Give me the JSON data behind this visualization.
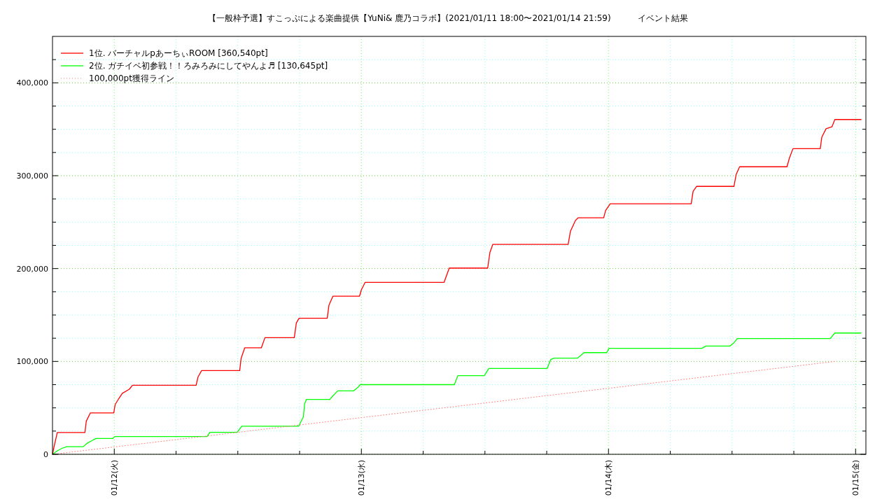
{
  "chart_data": {
    "type": "line",
    "title": "【一般枠予選】すこっぷによる楽曲提供【YuNi& 鹿乃コラボ】(2021/01/11 18:00〜2021/01/14 21:59)          イベント結果",
    "xlim": [
      "2021-01-11T18:00",
      "2021-01-15T01:00"
    ],
    "xticks": [
      {
        "value": "2021-01-12T00:00",
        "label": "01/12(火)"
      },
      {
        "value": "2021-01-12T06:00",
        "label": null
      },
      {
        "value": "2021-01-12T12:00",
        "label": null
      },
      {
        "value": "2021-01-12T18:00",
        "label": null
      },
      {
        "value": "2021-01-13T00:00",
        "label": "01/13(水)"
      },
      {
        "value": "2021-01-13T06:00",
        "label": null
      },
      {
        "value": "2021-01-13T12:00",
        "label": null
      },
      {
        "value": "2021-01-13T18:00",
        "label": null
      },
      {
        "value": "2021-01-14T00:00",
        "label": "01/14(木)"
      },
      {
        "value": "2021-01-14T06:00",
        "label": null
      },
      {
        "value": "2021-01-14T12:00",
        "label": null
      },
      {
        "value": "2021-01-14T18:00",
        "label": null
      },
      {
        "value": "2021-01-15T00:00",
        "label": "01/15(金)"
      }
    ],
    "ylim": [
      0,
      450000
    ],
    "yticks": [
      0,
      {
        "value": 25000,
        "label": null
      },
      {
        "value": 50000,
        "label": null
      },
      {
        "value": 75000,
        "label": null
      },
      {
        "value": 100000,
        "label": "100,000"
      },
      {
        "value": 125000,
        "label": null
      },
      {
        "value": 150000,
        "label": null
      },
      {
        "value": 175000,
        "label": null
      },
      {
        "value": 200000,
        "label": "200,000"
      },
      {
        "value": 225000,
        "label": null
      },
      {
        "value": 250000,
        "label": null
      },
      {
        "value": 275000,
        "label": null
      },
      {
        "value": 300000,
        "label": "300,000"
      },
      {
        "value": 325000,
        "label": null
      },
      {
        "value": 350000,
        "label": null
      },
      {
        "value": 375000,
        "label": null
      },
      {
        "value": 400000,
        "label": "400,000"
      },
      {
        "value": 425000,
        "label": null
      }
    ],
    "grid": true,
    "legend": "top left",
    "line_style": "solid",
    "series": [
      {
        "name": "1位. バーチャルpあーちぃROOM [360,540pt]",
        "color": "#ff0000",
        "x": [
          "2021-01-11T18:00",
          "2021-01-11T18:10",
          "2021-01-11T18:28",
          "2021-01-11T21:09",
          "2021-01-11T21:17",
          "2021-01-11T21:41",
          "2021-01-11T23:57",
          "2021-01-12T00:05",
          "2021-01-12T00:26",
          "2021-01-12T00:47",
          "2021-01-12T01:28",
          "2021-01-12T01:46",
          "2021-01-12T07:57",
          "2021-01-12T08:08",
          "2021-01-12T08:29",
          "2021-01-12T12:11",
          "2021-01-12T12:19",
          "2021-01-12T12:40",
          "2021-01-12T14:17",
          "2021-01-12T14:38",
          "2021-01-12T17:29",
          "2021-01-12T17:41",
          "2021-01-12T17:57",
          "2021-01-12T20:41",
          "2021-01-12T20:51",
          "2021-01-12T21:14",
          "2021-01-12T23:49",
          "2021-01-13T00:00",
          "2021-01-13T00:22",
          "2021-01-13T08:02",
          "2021-01-13T08:32",
          "2021-01-13T12:16",
          "2021-01-13T12:29",
          "2021-01-13T12:46",
          "2021-01-13T20:05",
          "2021-01-13T20:18",
          "2021-01-13T20:48",
          "2021-01-13T21:04",
          "2021-01-13T23:32",
          "2021-01-13T23:43",
          "2021-01-14T00:10",
          "2021-01-14T08:02",
          "2021-01-14T08:13",
          "2021-01-14T08:33",
          "2021-01-14T12:11",
          "2021-01-14T12:24",
          "2021-01-14T12:44",
          "2021-01-14T17:20",
          "2021-01-14T17:34",
          "2021-01-14T17:55",
          "2021-01-14T20:34",
          "2021-01-14T20:43",
          "2021-01-14T21:08",
          "2021-01-14T21:42",
          "2021-01-14T21:59",
          "2021-01-15T00:32"
        ],
        "values": [
          0,
          8900,
          23400,
          23400,
          35700,
          44600,
          44600,
          53500,
          59900,
          65700,
          70100,
          74400,
          74400,
          83300,
          90200,
          90200,
          103200,
          114600,
          114600,
          125600,
          125600,
          141400,
          146500,
          146500,
          160500,
          170200,
          170200,
          177100,
          185200,
          185200,
          200500,
          200500,
          217300,
          226100,
          226100,
          240000,
          252000,
          254700,
          254700,
          262400,
          269700,
          269700,
          283200,
          288500,
          288500,
          301300,
          309600,
          309600,
          318800,
          329100,
          329100,
          341400,
          350600,
          352600,
          360500,
          360500
        ]
      },
      {
        "name": "2位. ガチイベ初参戦！！ろみろみにしてやんよ♬ [130,645pt]",
        "color": "#00ff00",
        "x": [
          "2021-01-11T18:00",
          "2021-01-11T18:28",
          "2021-01-11T18:55",
          "2021-01-11T19:23",
          "2021-01-11T20:59",
          "2021-01-11T21:23",
          "2021-01-11T21:55",
          "2021-01-11T22:15",
          "2021-01-11T23:52",
          "2021-01-12T00:03",
          "2021-01-12T09:01",
          "2021-01-12T09:17",
          "2021-01-12T11:56",
          "2021-01-12T12:23",
          "2021-01-12T17:55",
          "2021-01-12T18:22",
          "2021-01-12T18:29",
          "2021-01-12T18:40",
          "2021-01-12T20:56",
          "2021-01-12T21:14",
          "2021-01-12T21:42",
          "2021-01-12T23:14",
          "2021-01-12T23:40",
          "2021-01-12T23:53",
          "2021-01-13T09:02",
          "2021-01-13T09:22",
          "2021-01-13T11:56",
          "2021-01-13T12:23",
          "2021-01-13T18:03",
          "2021-01-13T18:23",
          "2021-01-13T18:44",
          "2021-01-13T20:59",
          "2021-01-13T21:38",
          "2021-01-13T23:50",
          "2021-01-14T00:03",
          "2021-01-14T09:04",
          "2021-01-14T09:28",
          "2021-01-14T11:47",
          "2021-01-14T12:11",
          "2021-01-14T12:31",
          "2021-01-14T21:32",
          "2021-01-14T21:59",
          "2021-01-15T00:32"
        ],
        "values": [
          0,
          3800,
          6400,
          8200,
          8200,
          12000,
          15300,
          17100,
          17100,
          19100,
          19100,
          23700,
          23700,
          30300,
          30300,
          40300,
          54300,
          59100,
          59100,
          62900,
          68300,
          68300,
          72100,
          75000,
          75000,
          84700,
          84700,
          92500,
          92500,
          102000,
          103500,
          103500,
          109500,
          109500,
          114100,
          114100,
          116500,
          116500,
          120100,
          124600,
          124600,
          130600,
          130600
        ]
      },
      {
        "name": "100,000pt獲得ライン",
        "color": "#ff8080",
        "line_style": "dotted",
        "x": [
          "2021-01-11T18:00",
          "2021-01-14T21:59"
        ],
        "values": [
          0,
          100000
        ]
      }
    ]
  }
}
